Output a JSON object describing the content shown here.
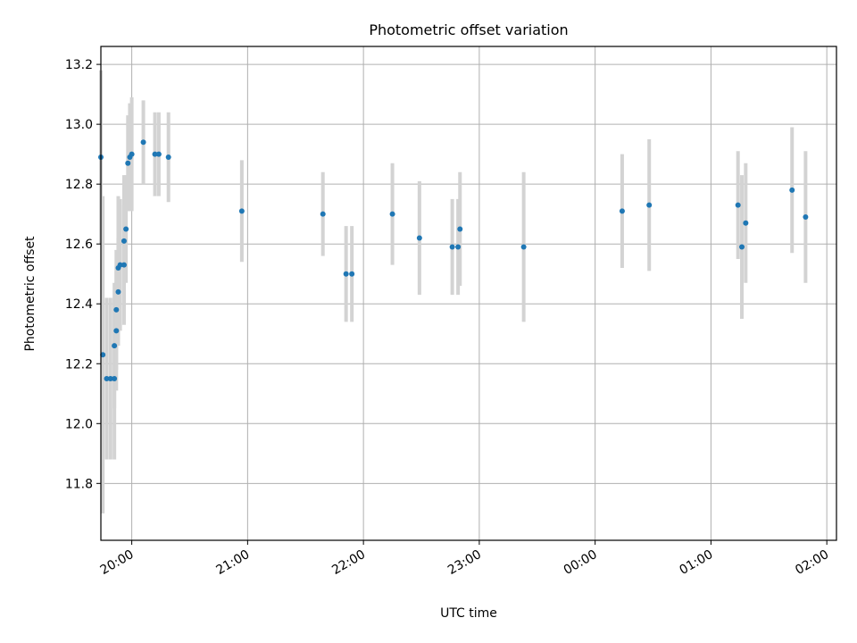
{
  "chart_data": {
    "type": "scatter",
    "title": "Photometric offset variation",
    "xlabel": "UTC time",
    "ylabel": "Photometric offset",
    "x_axis": "time",
    "xlim": [
      "19:44",
      "02:05"
    ],
    "ylim": [
      11.61,
      13.26
    ],
    "x_ticks": [
      "20:00",
      "21:00",
      "22:00",
      "23:00",
      "00:00",
      "01:00",
      "02:00"
    ],
    "y_ticks": [
      "11.8",
      "12.0",
      "12.2",
      "12.4",
      "12.6",
      "12.8",
      "13.0",
      "13.2"
    ],
    "grid": true,
    "colors": {
      "point": "#1f77b4",
      "errorbar": "#d3d3d3",
      "grid": "#b0b0b0"
    },
    "points": [
      {
        "time": "19:44",
        "y": 12.89,
        "yerr": 0.29
      },
      {
        "time": "19:45",
        "y": 12.23,
        "yerr": 0.53
      },
      {
        "time": "19:47",
        "y": 12.15,
        "yerr": 0.27
      },
      {
        "time": "19:49",
        "y": 12.15,
        "yerr": 0.27
      },
      {
        "time": "19:51",
        "y": 12.15,
        "yerr": 0.27
      },
      {
        "time": "19:51",
        "y": 12.26,
        "yerr": 0.21
      },
      {
        "time": "19:52",
        "y": 12.31,
        "yerr": 0.2
      },
      {
        "time": "19:52",
        "y": 12.38,
        "yerr": 0.2
      },
      {
        "time": "19:53",
        "y": 12.44,
        "yerr": 0.18
      },
      {
        "time": "19:53",
        "y": 12.52,
        "yerr": 0.24
      },
      {
        "time": "19:54",
        "y": 12.53,
        "yerr": 0.22
      },
      {
        "time": "19:56",
        "y": 12.53,
        "yerr": 0.2
      },
      {
        "time": "19:56",
        "y": 12.61,
        "yerr": 0.22
      },
      {
        "time": "19:57",
        "y": 12.65,
        "yerr": 0.18
      },
      {
        "time": "19:58",
        "y": 12.87,
        "yerr": 0.16
      },
      {
        "time": "19:59",
        "y": 12.89,
        "yerr": 0.18
      },
      {
        "time": "20:00",
        "y": 12.9,
        "yerr": 0.19
      },
      {
        "time": "20:06",
        "y": 12.94,
        "yerr": 0.14
      },
      {
        "time": "20:12",
        "y": 12.9,
        "yerr": 0.14
      },
      {
        "time": "20:14",
        "y": 12.9,
        "yerr": 0.14
      },
      {
        "time": "20:19",
        "y": 12.89,
        "yerr": 0.15
      },
      {
        "time": "20:57",
        "y": 12.71,
        "yerr": 0.17
      },
      {
        "time": "21:39",
        "y": 12.7,
        "yerr": 0.14
      },
      {
        "time": "21:51",
        "y": 12.5,
        "yerr": 0.16
      },
      {
        "time": "21:54",
        "y": 12.5,
        "yerr": 0.16
      },
      {
        "time": "22:15",
        "y": 12.7,
        "yerr": 0.17
      },
      {
        "time": "22:29",
        "y": 12.62,
        "yerr": 0.19
      },
      {
        "time": "22:46",
        "y": 12.59,
        "yerr": 0.16
      },
      {
        "time": "22:49",
        "y": 12.59,
        "yerr": 0.16
      },
      {
        "time": "22:50",
        "y": 12.65,
        "yerr": 0.19
      },
      {
        "time": "23:23",
        "y": 12.59,
        "yerr": 0.25
      },
      {
        "time": "00:14",
        "y": 12.71,
        "yerr": 0.19
      },
      {
        "time": "00:28",
        "y": 12.73,
        "yerr": 0.22
      },
      {
        "time": "01:14",
        "y": 12.73,
        "yerr": 0.18
      },
      {
        "time": "01:16",
        "y": 12.59,
        "yerr": 0.24
      },
      {
        "time": "01:18",
        "y": 12.67,
        "yerr": 0.2
      },
      {
        "time": "01:42",
        "y": 12.78,
        "yerr": 0.21
      },
      {
        "time": "01:49",
        "y": 12.69,
        "yerr": 0.22
      }
    ]
  }
}
